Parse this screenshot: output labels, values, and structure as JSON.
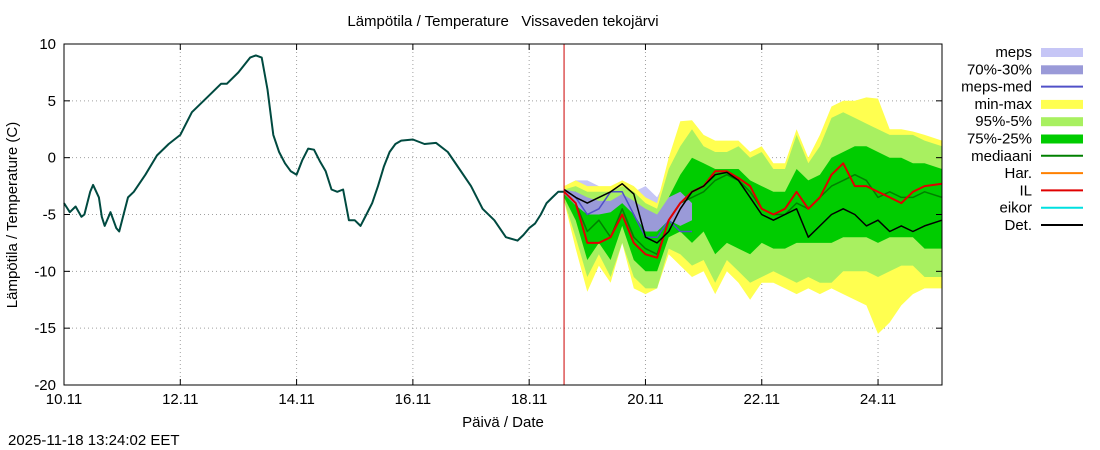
{
  "chart_data": {
    "type": "line",
    "title": "Lämpötila / Temperature   Vissaveden tekojärvi",
    "xlabel": "Päivä / Date",
    "ylabel": "Lämpötila / Temperature (C)",
    "timestamp": "2025-11-18 13:24:02 EET",
    "xlim": [
      0,
      15.1
    ],
    "ylim": [
      -20,
      10
    ],
    "x_unit": "days since 10.11 00:00",
    "x_ticks": [
      {
        "x": 0,
        "label": "10.11"
      },
      {
        "x": 2,
        "label": "12.11"
      },
      {
        "x": 4,
        "label": "14.11"
      },
      {
        "x": 6,
        "label": "16.11"
      },
      {
        "x": 8,
        "label": "18.11"
      },
      {
        "x": 10,
        "label": "20.11"
      },
      {
        "x": 12,
        "label": "22.11"
      },
      {
        "x": 14,
        "label": "24.11"
      }
    ],
    "y_ticks": [
      10,
      5,
      0,
      -5,
      -10,
      -15,
      -20
    ],
    "grid": true,
    "forecast_start": 8.6,
    "colors": {
      "meps": "#c6c6f6",
      "p70_30": "#9a9ad8",
      "meps_med": "#5050c8",
      "minmax": "#ffff50",
      "p95_5": "#a8f060",
      "p75_25": "#00cc00",
      "median": "#008000",
      "har": "#ff8000",
      "il": "#e00000",
      "eikor": "#00e0e0",
      "det": "#000000",
      "observed": "#004a40",
      "forecast_line": "#cc0000"
    },
    "legend": [
      {
        "label": "meps",
        "kind": "band",
        "color": "#c6c6f6"
      },
      {
        "label": "70%-30%",
        "kind": "band",
        "color": "#9a9ad8"
      },
      {
        "label": "meps-med",
        "kind": "line",
        "color": "#5050c8"
      },
      {
        "label": "min-max",
        "kind": "band",
        "color": "#ffff50"
      },
      {
        "label": "95%-5%",
        "kind": "band",
        "color": "#a8f060"
      },
      {
        "label": "75%-25%",
        "kind": "band",
        "color": "#00cc00"
      },
      {
        "label": "mediaani",
        "kind": "line",
        "color": "#008000"
      },
      {
        "label": "Har.",
        "kind": "line",
        "color": "#ff8000"
      },
      {
        "label": "IL",
        "kind": "line",
        "color": "#e00000"
      },
      {
        "label": "eikor",
        "kind": "line",
        "color": "#00e0e0"
      },
      {
        "label": "Det.",
        "kind": "line",
        "color": "#000000"
      }
    ],
    "series": {
      "observed": {
        "x": [
          0,
          0.1,
          0.2,
          0.3,
          0.35,
          0.45,
          0.5,
          0.6,
          0.65,
          0.7,
          0.8,
          0.9,
          0.95,
          1.0,
          1.1,
          1.2,
          1.4,
          1.6,
          1.8,
          2.0,
          2.2,
          2.5,
          2.7,
          2.8,
          3.0,
          3.2,
          3.3,
          3.4,
          3.5,
          3.6,
          3.7,
          3.8,
          3.9,
          4.0,
          4.1,
          4.2,
          4.3,
          4.4,
          4.5,
          4.6,
          4.7,
          4.8,
          4.9,
          5.0,
          5.1,
          5.2,
          5.3,
          5.4,
          5.5,
          5.6,
          5.7,
          5.8,
          6.0,
          6.2,
          6.4,
          6.6,
          6.8,
          7.0,
          7.2,
          7.4,
          7.6,
          7.8,
          7.9,
          8.0,
          8.1,
          8.2,
          8.3,
          8.4,
          8.5,
          8.6
        ],
        "y": [
          -4,
          -4.8,
          -4.3,
          -5.2,
          -5.0,
          -3.0,
          -2.4,
          -3.5,
          -5.2,
          -6.0,
          -4.8,
          -6.2,
          -6.5,
          -5.5,
          -3.5,
          -3.0,
          -1.5,
          0.2,
          1.2,
          2.0,
          4.0,
          5.5,
          6.5,
          6.5,
          7.5,
          8.8,
          9.0,
          8.8,
          6.0,
          2.0,
          0.5,
          -0.5,
          -1.2,
          -1.5,
          -0.2,
          0.8,
          0.7,
          -0.3,
          -1.2,
          -2.8,
          -3.0,
          -2.8,
          -5.5,
          -5.5,
          -6.0,
          -5.0,
          -4.0,
          -2.5,
          -0.8,
          0.5,
          1.2,
          1.5,
          1.6,
          1.2,
          1.3,
          0.5,
          -1.0,
          -2.5,
          -4.5,
          -5.5,
          -7.0,
          -7.3,
          -6.8,
          -6.2,
          -5.8,
          -5.0,
          -4.0,
          -3.5,
          -3.0,
          -3.0
        ]
      },
      "forecast_x": [
        8.6,
        8.8,
        9.0,
        9.2,
        9.4,
        9.6,
        9.8,
        10.0,
        10.2,
        10.4,
        10.6,
        10.8,
        11.0,
        11.2,
        11.4,
        11.6,
        11.8,
        12.0,
        12.2,
        12.4,
        12.6,
        12.8,
        13.0,
        13.2,
        13.4,
        13.6,
        13.8,
        14.0,
        14.2,
        14.4,
        14.6,
        14.8,
        15.1
      ],
      "minmax_lo": [
        -3.8,
        -8.0,
        -11.8,
        -9.5,
        -11.0,
        -7.5,
        -11.5,
        -12.0,
        -11.5,
        -8.5,
        -9.5,
        -10.5,
        -10.0,
        -12.0,
        -10.0,
        -11.0,
        -12.5,
        -11.0,
        -11.0,
        -11.5,
        -12.0,
        -11.5,
        -12.0,
        -11.5,
        -12.0,
        -12.5,
        -13.0,
        -15.5,
        -14.5,
        -13.0,
        -12.0,
        -11.5,
        -11.5
      ],
      "minmax_hi": [
        -2.5,
        -2.0,
        -2.5,
        -2.5,
        -2.5,
        -2.0,
        -2.5,
        -3.5,
        -4.0,
        0.0,
        3.2,
        3.3,
        2.0,
        1.5,
        1.5,
        1.5,
        0.5,
        1.0,
        -0.5,
        -0.5,
        2.5,
        0.0,
        2.0,
        4.5,
        5.0,
        5.0,
        5.3,
        5.2,
        2.5,
        2.5,
        2.3,
        2.0,
        1.5
      ],
      "p95_lo": [
        -3.8,
        -7.0,
        -10.5,
        -8.5,
        -10.5,
        -7.5,
        -10.5,
        -11.5,
        -11.5,
        -8.0,
        -8.5,
        -9.5,
        -9.0,
        -11.0,
        -9.0,
        -10.0,
        -11.0,
        -10.5,
        -10.0,
        -10.5,
        -11.0,
        -10.5,
        -11.0,
        -11.0,
        -10.0,
        -10.0,
        -10.0,
        -10.5,
        -10.0,
        -9.5,
        -9.5,
        -10.5,
        -10.5
      ],
      "p95_hi": [
        -2.8,
        -2.5,
        -3.0,
        -3.0,
        -3.0,
        -2.5,
        -3.0,
        -4.0,
        -4.5,
        -1.0,
        1.0,
        2.5,
        1.0,
        0.5,
        0.5,
        1.0,
        0.0,
        0.5,
        -1.0,
        -1.0,
        2.0,
        -0.5,
        1.0,
        3.5,
        4.0,
        3.5,
        3.0,
        2.5,
        2.0,
        2.0,
        2.0,
        1.5,
        1.0
      ],
      "p75_lo": [
        -3.5,
        -5.5,
        -9.0,
        -7.5,
        -9.0,
        -6.0,
        -9.0,
        -10.0,
        -10.0,
        -7.0,
        -6.5,
        -7.5,
        -6.5,
        -8.5,
        -7.5,
        -8.0,
        -8.5,
        -7.5,
        -8.0,
        -8.0,
        -7.5,
        -7.5,
        -7.5,
        -7.5,
        -7.0,
        -7.0,
        -7.0,
        -7.5,
        -7.0,
        -7.0,
        -7.0,
        -8.0,
        -8.0
      ],
      "p75_hi": [
        -3.0,
        -3.0,
        -4.0,
        -4.0,
        -4.0,
        -3.5,
        -4.5,
        -5.5,
        -6.0,
        -3.5,
        -1.5,
        0.0,
        -0.5,
        -1.0,
        -1.0,
        -1.0,
        -2.0,
        -2.5,
        -3.0,
        -3.0,
        -1.0,
        -2.0,
        -1.5,
        0.0,
        0.5,
        1.0,
        1.0,
        0.5,
        0.0,
        0.0,
        -0.5,
        -0.5,
        -1.0
      ],
      "meps_lo": [
        -3.5,
        -5.0,
        -7.0,
        -7.5,
        -7.0,
        -6.0,
        -7.0,
        -9.0,
        -9.5,
        -8.0,
        -9.5,
        -8.0
      ],
      "meps_hi": [
        -2.5,
        -2.0,
        -2.0,
        -2.5,
        -3.5,
        -2.5,
        -3.0,
        -2.5,
        -3.5,
        -1.5,
        -0.5,
        -2.0
      ],
      "p70_lo": [
        -3.2,
        -4.2,
        -5.0,
        -5.0,
        -4.8,
        -4.0,
        -5.0,
        -6.5,
        -6.5,
        -5.5,
        -6.0,
        -5.5
      ],
      "p70_hi": [
        -2.8,
        -3.0,
        -3.5,
        -3.8,
        -3.8,
        -3.2,
        -3.8,
        -4.5,
        -5.0,
        -3.5,
        -3.0,
        -4.0
      ],
      "meps_med": [
        -2.8,
        -3.5,
        -5.0,
        -4.5,
        -3.0,
        -3.0,
        -5.0,
        -7.0,
        -7.0,
        -5.5,
        -6.5,
        -6.5
      ],
      "median": [
        -3.0,
        -4.0,
        -6.5,
        -5.5,
        -7.0,
        -4.5,
        -7.0,
        -8.0,
        -8.5,
        -5.5,
        -4.0,
        -3.5,
        -3.0,
        -2.0,
        -1.5,
        -2.0,
        -3.0,
        -4.5,
        -5.0,
        -5.0,
        -4.0,
        -4.5,
        -3.5,
        -2.5,
        -2.0,
        -1.5,
        -2.0,
        -3.5,
        -3.0,
        -3.5,
        -3.5,
        -3.0,
        -3.5
      ],
      "il": [
        -3.0,
        -4.0,
        -7.5,
        -7.5,
        -7.0,
        -5.0,
        -7.5,
        -8.5,
        -8.8,
        -5.5,
        -4.0,
        -3.0,
        -2.5,
        -1.2,
        -1.2,
        -1.8,
        -2.5,
        -4.5,
        -5.0,
        -4.5,
        -3.0,
        -4.5,
        -3.5,
        -1.5,
        -0.5,
        -2.5,
        -2.5,
        -3.0,
        -3.5,
        -4.0,
        -3.0,
        -2.5,
        -2.3
      ],
      "det": [
        -2.8,
        -3.5,
        -4.0,
        -3.5,
        -3.0,
        -2.3,
        -3.2,
        -7.0,
        -7.5,
        -6.5,
        -4.5,
        -3.0,
        -2.5,
        -1.5,
        -1.3,
        -2.0,
        -3.5,
        -5.0,
        -5.5,
        -5.0,
        -4.5,
        -7.0,
        -6.0,
        -5.0,
        -4.5,
        -5.0,
        -6.0,
        -5.5,
        -6.5,
        -6.0,
        -6.5,
        -6.0,
        -5.5
      ]
    }
  }
}
